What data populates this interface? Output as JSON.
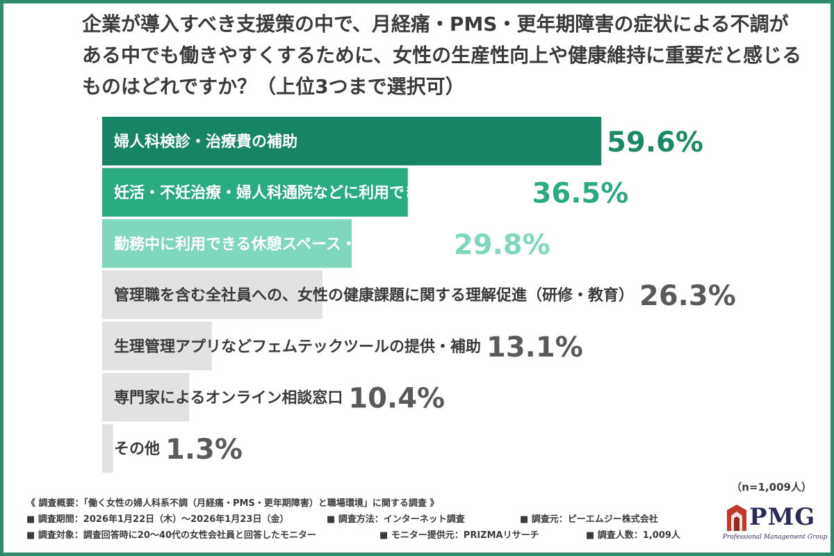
{
  "title": "企業が導入すべき支援策の中で、月経痛・PMS・更年期障害の症状による不調がある中でも働きやすくするために、女性の生産性向上や健康維持に重要だと感じるものはどれですか？（上位3つまで選択可）",
  "chart_data": {
    "type": "bar",
    "orientation": "horizontal",
    "unit": "%",
    "xlim": [
      0,
      100
    ],
    "categories": [
      "婦人科検診・治療費の補助",
      "妊活・不妊治療・婦人科通院などに利用できる特別休暇制度",
      "勤務中に利用できる休憩スペース・仮眠室の整備",
      "管理職を含む全社員への、女性の健康課題に関する理解促進（研修・教育）",
      "生理管理アプリなどフェムテックツールの提供・補助",
      "専門家によるオンライン相談窓口",
      "その他"
    ],
    "values": [
      59.6,
      36.5,
      29.8,
      26.3,
      13.1,
      10.4,
      1.3
    ],
    "value_labels": [
      "59.6%",
      "36.5%",
      "29.8%",
      "26.3%",
      "13.1%",
      "10.4%",
      "1.3%"
    ],
    "bar_colors": [
      "#178565",
      "#2aab82",
      "#7fd8bd",
      "#e2e2e2",
      "#e2e2e2",
      "#e2e2e2",
      "#e2e2e2"
    ],
    "value_colors": [
      "#1a8a66",
      "#2aab82",
      "#7fd8bd",
      "#5a5a5a",
      "#5a5a5a",
      "#5a5a5a",
      "#5a5a5a"
    ],
    "label_colors": [
      "#ffffff",
      "#ffffff",
      "#ffffff",
      "#3a3a3a",
      "#3a3a3a",
      "#3a3a3a",
      "#3a3a3a"
    ]
  },
  "sample_note": "（n=1,009人）",
  "footnotes": {
    "overview": "《 調査概要：「働く女性の婦人科系不調（月経痛・PMS・更年期障害）と職場環境」に関する調査 》",
    "period": "■ 調査期間：2026年1月22日（木）〜2026年1月23日（金）",
    "method": "■ 調査方法：インターネット調査",
    "source": "■ 調査元：ピーエムジー株式会社",
    "target": "■ 調査対象：調査回答時に20〜40代の女性会社員と回答したモニター",
    "provider": "■ モニター提供元：PRIZMAリサーチ",
    "count": "■ 調査人数：1,009人"
  },
  "logo": {
    "text": "PMG",
    "subtitle": "Professional Management Group",
    "color": "#2a2a5a",
    "accent": "#c0392b"
  },
  "colors": {
    "frame": "#2d8a6a",
    "text": "#3a3a3a"
  }
}
